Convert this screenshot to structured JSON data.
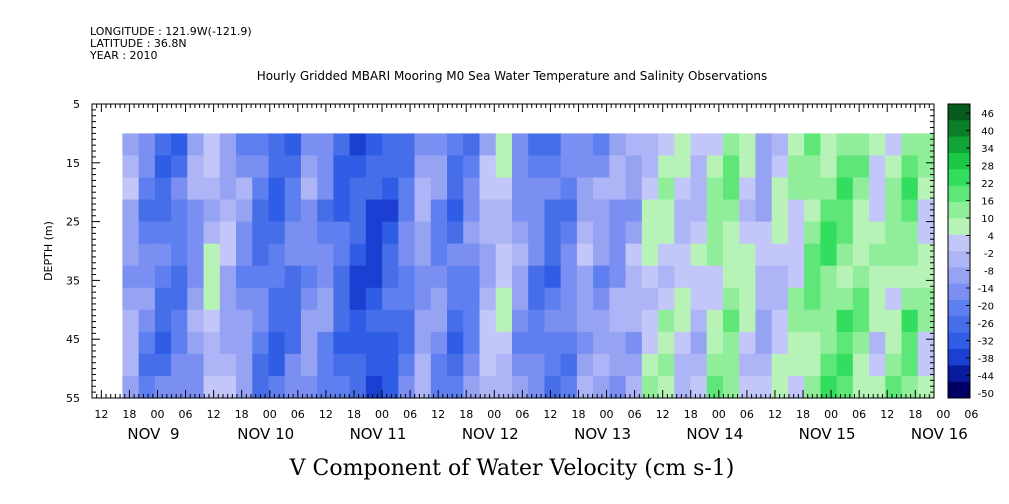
{
  "header": {
    "longitude": "LONGITUDE : 121.9W(-121.9)",
    "latitude": "LATITUDE : 36.8N",
    "year": "YEAR : 2010"
  },
  "chart_data": {
    "type": "heatmap",
    "title": "Hourly Gridded MBARI Mooring M0 Sea Water Temperature and Salinity Observations",
    "xlabel": "V Component of Water Velocity (cm s-1)",
    "ylabel": "DEPTH (m)",
    "ylim": [
      55,
      5
    ],
    "y_ticks": [
      5,
      15,
      25,
      35,
      45,
      55
    ],
    "x_hour_labels": [
      "12",
      "18",
      "00",
      "06",
      "12",
      "18",
      "00",
      "06",
      "12",
      "18",
      "00",
      "06",
      "12",
      "18",
      "00",
      "06",
      "12",
      "18",
      "00",
      "06",
      "12",
      "18",
      "00",
      "06",
      "12",
      "18",
      "00",
      "06",
      "12",
      "18",
      "00",
      "06"
    ],
    "x_day_labels": [
      "NOV  9",
      "NOV 10",
      "NOV 11",
      "NOV 12",
      "NOV 13",
      "NOV 14",
      "NOV 15",
      "NOV 16"
    ],
    "x_range_hours": [
      10,
      190
    ],
    "data_start_hour": 16.5,
    "data_depth_range": [
      10,
      55
    ],
    "colorbar_levels": [
      "46",
      "40",
      "34",
      "28",
      "22",
      "16",
      "10",
      "4",
      "-2",
      "-8",
      "-14",
      "-20",
      "-26",
      "-32",
      "-38",
      "-44",
      "-50"
    ],
    "colorbar_range": [
      -50,
      52
    ],
    "colorbar_colors_low_to_high": [
      "#000066",
      "#0a1a9c",
      "#1a3fd2",
      "#2f5de6",
      "#466ee8",
      "#5e7ff0",
      "#7b8ff2",
      "#96a3f3",
      "#aeb5f6",
      "#c3c6f8",
      "#b7f3b7",
      "#90ee9a",
      "#5fe678",
      "#33dd5e",
      "#1ac845",
      "#10a535",
      "#0b7f27",
      "#075c1b"
    ],
    "tile_columns": [
      -6,
      -16,
      -22,
      -20,
      -10,
      3,
      -4,
      -12,
      -20,
      -24,
      -20,
      -12,
      -16,
      -24,
      -30,
      -32,
      -26,
      -18,
      -8,
      -14,
      -22,
      -16,
      -2,
      4,
      -10,
      -18,
      -22,
      -16,
      -6,
      -10,
      -8,
      -4,
      6,
      8,
      3,
      2,
      12,
      14,
      6,
      -2,
      4,
      9,
      16,
      18,
      20,
      14,
      8,
      12,
      18,
      10
    ],
    "tile_rows": 12
  }
}
